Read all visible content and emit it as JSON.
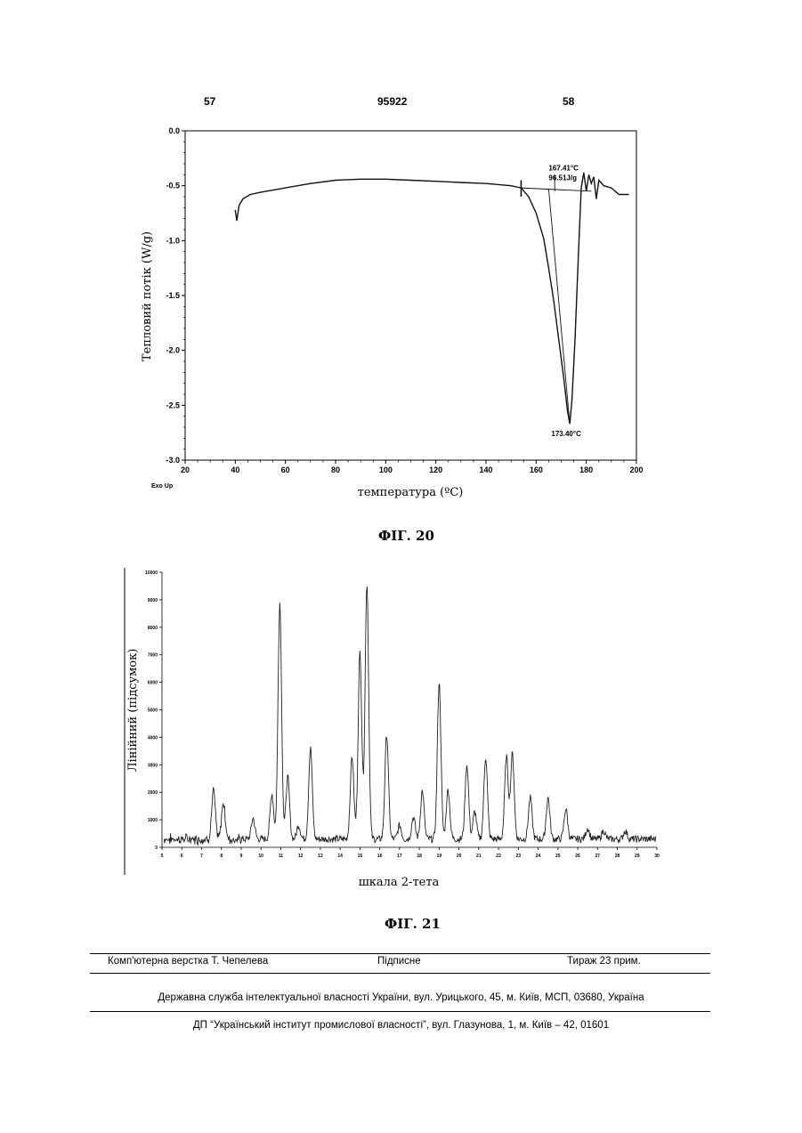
{
  "header": {
    "left_page": "57",
    "patent_number": "95922",
    "right_page": "58"
  },
  "figures": [
    {
      "caption": "ФІГ. 20"
    },
    {
      "caption": "ФІГ. 21"
    }
  ],
  "footer": {
    "typesetter": "Комп'ютерна верстка Т. Чепелева",
    "signed": "Підписне",
    "circulation": "Тираж 23 прим.",
    "agency": "Державна служба інтелектуальної власності України, вул. Урицького, 45, м. Київ, МСП, 03680, Україна",
    "institute": "ДП “Український інститут промислової власності”, вул. Глазунова, 1, м. Київ – 42, 01601"
  },
  "chart_data": [
    {
      "type": "line",
      "title": "",
      "xlabel": "температура (ºC)",
      "ylabel": "Тепловий потік (W/g)",
      "corner_label": "Exo Up",
      "xlim": [
        20,
        200
      ],
      "ylim": [
        -3.0,
        0.0
      ],
      "x_ticks": [
        20,
        40,
        60,
        80,
        100,
        120,
        140,
        160,
        180,
        200
      ],
      "y_ticks": [
        0.0,
        -0.5,
        -1.0,
        -1.5,
        -2.0,
        -2.5,
        -3.0
      ],
      "y_tick_labels": [
        "0.0",
        "-0.5",
        "-1.0",
        "-1.5",
        "-2.0",
        "-2.5",
        "-3.0"
      ],
      "x": [
        40,
        40.6,
        41.5,
        43,
        46,
        50,
        60,
        70,
        80,
        90,
        100,
        110,
        120,
        130,
        140,
        150,
        154,
        157,
        160,
        163,
        165,
        167,
        169,
        171,
        172.5,
        173.4,
        174.3,
        175.5,
        177,
        178,
        179,
        180,
        181,
        182,
        183,
        184,
        185,
        187,
        190,
        193,
        197
      ],
      "y": [
        -0.72,
        -0.82,
        -0.68,
        -0.62,
        -0.58,
        -0.56,
        -0.52,
        -0.48,
        -0.45,
        -0.44,
        -0.44,
        -0.45,
        -0.46,
        -0.47,
        -0.48,
        -0.5,
        -0.52,
        -0.6,
        -0.75,
        -0.98,
        -1.25,
        -1.55,
        -1.9,
        -2.25,
        -2.55,
        -2.67,
        -2.45,
        -1.9,
        -1.05,
        -0.52,
        -0.38,
        -0.55,
        -0.4,
        -0.48,
        -0.42,
        -0.62,
        -0.45,
        -0.5,
        -0.52,
        -0.58,
        -0.58
      ],
      "annotations": [
        {
          "text": "167.41°C",
          "x": 167.41
        },
        {
          "text": "96.51J/g"
        },
        {
          "text": "173.40°C",
          "x": 173.4,
          "y": -2.67
        }
      ]
    },
    {
      "type": "line",
      "title": "",
      "xlabel": "шкала 2-тета",
      "ylabel": "Лінійний (підсумок)",
      "xlim": [
        5,
        30
      ],
      "ylim": [
        0,
        10000
      ],
      "x_ticks": [
        5,
        6,
        7,
        8,
        9,
        10,
        11,
        12,
        13,
        14,
        15,
        16,
        17,
        18,
        19,
        20,
        21,
        22,
        23,
        24,
        25,
        26,
        27,
        28,
        29,
        30
      ],
      "y_ticks": [
        0,
        1000,
        2000,
        3000,
        4000,
        5000,
        6000,
        7000,
        8000,
        9000,
        10000
      ],
      "baseline": 300,
      "peaks": [
        {
          "x": 7.6,
          "y": 2050
        },
        {
          "x": 8.1,
          "y": 1650
        },
        {
          "x": 9.6,
          "y": 1050
        },
        {
          "x": 10.55,
          "y": 1950
        },
        {
          "x": 10.95,
          "y": 8900
        },
        {
          "x": 11.35,
          "y": 2550
        },
        {
          "x": 11.9,
          "y": 800
        },
        {
          "x": 12.5,
          "y": 3600
        },
        {
          "x": 14.6,
          "y": 3300
        },
        {
          "x": 15.0,
          "y": 7100
        },
        {
          "x": 15.35,
          "y": 9600
        },
        {
          "x": 16.35,
          "y": 4100
        },
        {
          "x": 17.0,
          "y": 800
        },
        {
          "x": 17.7,
          "y": 1100
        },
        {
          "x": 18.15,
          "y": 2050
        },
        {
          "x": 19.0,
          "y": 6000
        },
        {
          "x": 19.45,
          "y": 2100
        },
        {
          "x": 20.4,
          "y": 3000
        },
        {
          "x": 20.8,
          "y": 1300
        },
        {
          "x": 21.35,
          "y": 3300
        },
        {
          "x": 22.4,
          "y": 3300
        },
        {
          "x": 22.7,
          "y": 3400
        },
        {
          "x": 23.6,
          "y": 1800
        },
        {
          "x": 24.5,
          "y": 1800
        },
        {
          "x": 25.4,
          "y": 1400
        },
        {
          "x": 26.5,
          "y": 700
        },
        {
          "x": 27.3,
          "y": 600
        },
        {
          "x": 28.4,
          "y": 600
        }
      ]
    }
  ]
}
